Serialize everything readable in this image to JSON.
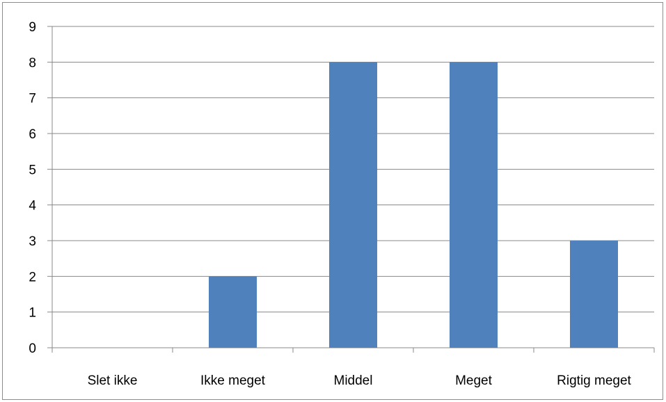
{
  "chart_data": {
    "type": "bar",
    "categories": [
      "Slet ikke",
      "Ikke meget",
      "Middel",
      "Meget",
      "Rigtig meget"
    ],
    "values": [
      0,
      2,
      8,
      8,
      3
    ],
    "title": "",
    "xlabel": "",
    "ylabel": "",
    "ylim": [
      0,
      9
    ],
    "yticks": [
      "0",
      "1",
      "2",
      "3",
      "4",
      "5",
      "6",
      "7",
      "8",
      "9"
    ],
    "grid": true,
    "legend": "none",
    "bar_color": "#4f81bd",
    "grid_color": "#888888"
  }
}
